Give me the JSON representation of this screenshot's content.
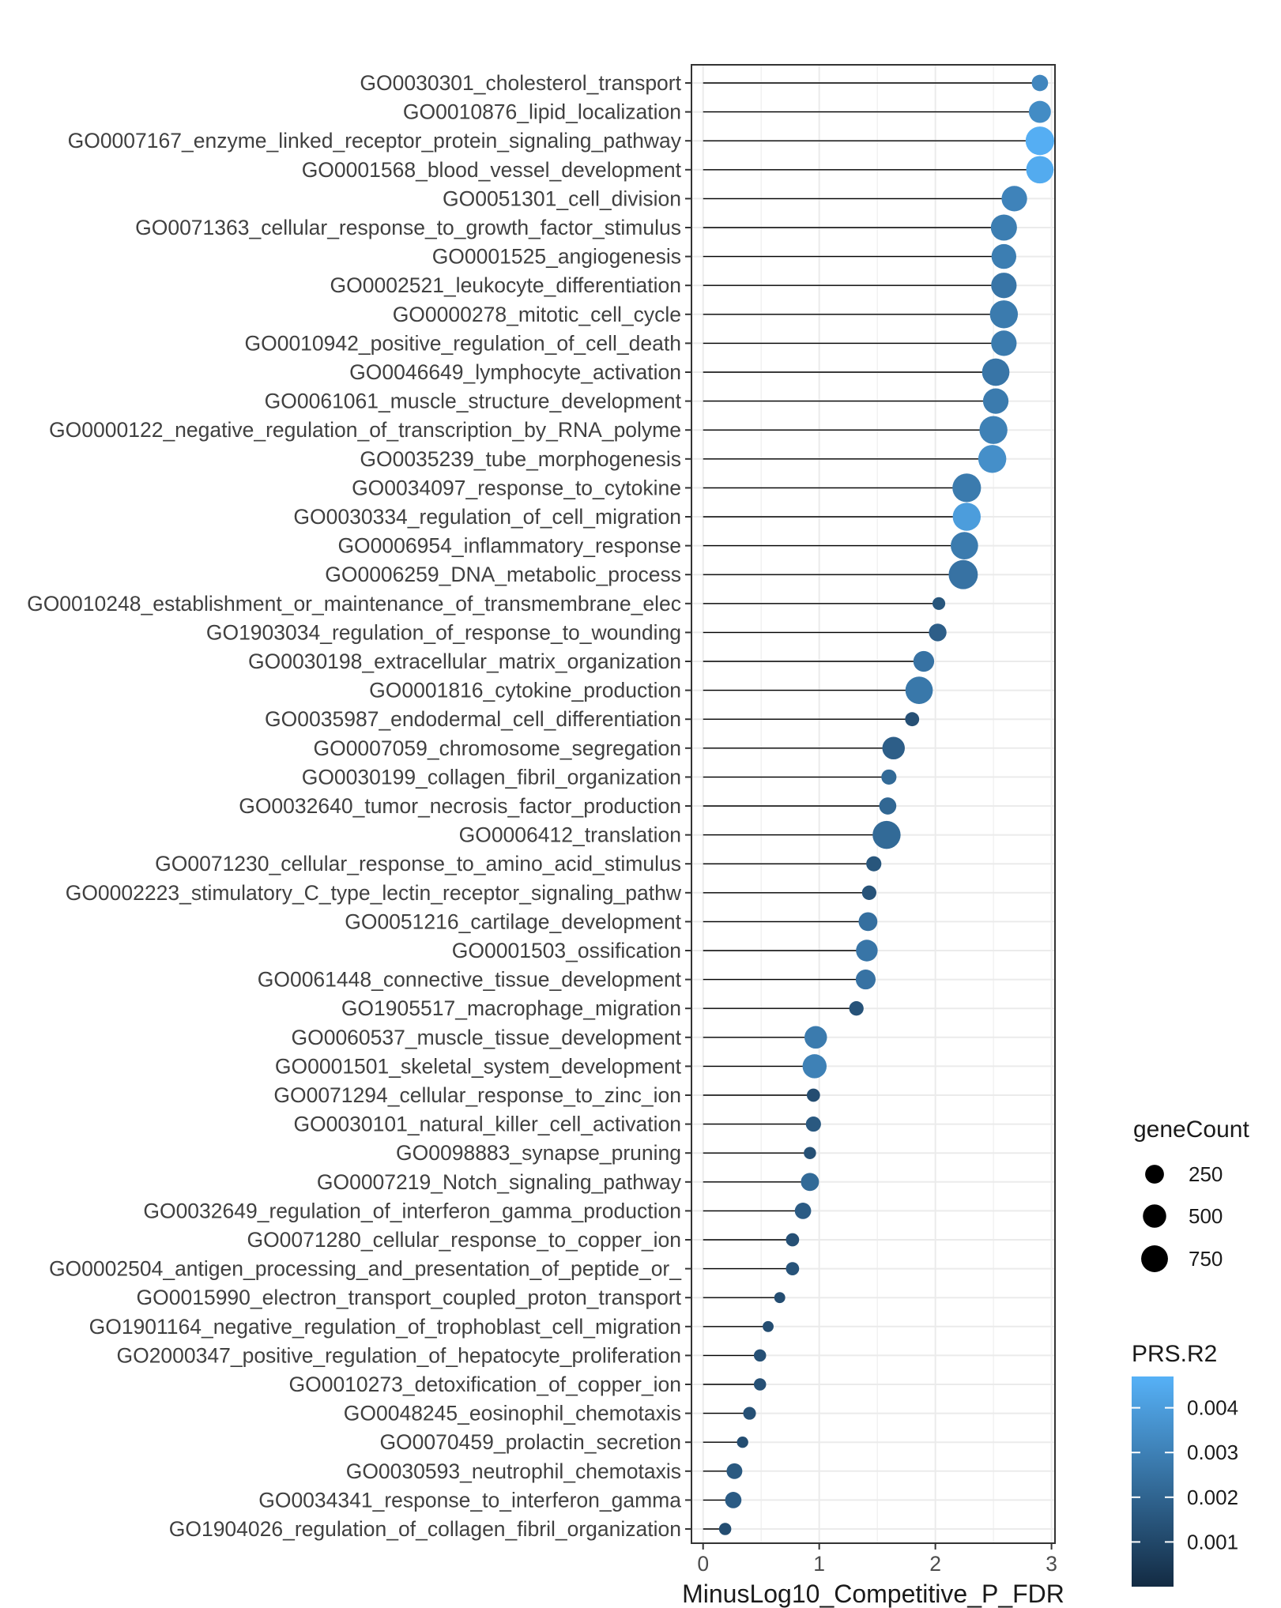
{
  "chart_data": {
    "type": "lollipop",
    "xlabel": "MinusLog10_Competitive_P_FDR",
    "xlim": [
      -0.1,
      3.03
    ],
    "x_ticks": [
      0,
      1,
      2,
      3
    ],
    "grid": true,
    "legend_placement": "right",
    "size_legend": {
      "title": "geneCount",
      "values": [
        250,
        500,
        750
      ]
    },
    "color_legend": {
      "title": "PRS.R2",
      "ticks": [
        0.001,
        0.002,
        0.003,
        0.004
      ],
      "tick_labels": [
        "0.001",
        "0.002",
        "0.003",
        "0.004"
      ],
      "range": [
        0.0,
        0.0047
      ],
      "colors": {
        "low": "#132B43",
        "high": "#56B1F7"
      }
    },
    "points": [
      {
        "label": "GO0030301_cholesterol_transport",
        "x": 2.9,
        "geneCount": 150,
        "prs_r2": 0.0032
      },
      {
        "label": "GO0010876_lipid_localization",
        "x": 2.9,
        "geneCount": 420,
        "prs_r2": 0.0034
      },
      {
        "label": "GO0007167_enzyme_linked_receptor_protein_signaling_pathway",
        "x": 2.9,
        "geneCount": 900,
        "prs_r2": 0.0046
      },
      {
        "label": "GO0001568_blood_vessel_development",
        "x": 2.9,
        "geneCount": 800,
        "prs_r2": 0.0045
      },
      {
        "label": "GO0051301_cell_division",
        "x": 2.68,
        "geneCount": 650,
        "prs_r2": 0.0031
      },
      {
        "label": "GO0071363_cellular_response_to_growth_factor_stimulus",
        "x": 2.59,
        "geneCount": 700,
        "prs_r2": 0.0029
      },
      {
        "label": "GO0001525_angiogenesis",
        "x": 2.59,
        "geneCount": 600,
        "prs_r2": 0.0029
      },
      {
        "label": "GO0002521_leukocyte_differentiation",
        "x": 2.59,
        "geneCount": 650,
        "prs_r2": 0.0026
      },
      {
        "label": "GO0000278_mitotic_cell_cycle",
        "x": 2.59,
        "geneCount": 850,
        "prs_r2": 0.0028
      },
      {
        "label": "GO0010942_positive_regulation_of_cell_death",
        "x": 2.59,
        "geneCount": 650,
        "prs_r2": 0.0028
      },
      {
        "label": "GO0046649_lymphocyte_activation",
        "x": 2.52,
        "geneCount": 800,
        "prs_r2": 0.0026
      },
      {
        "label": "GO0061061_muscle_structure_development",
        "x": 2.52,
        "geneCount": 650,
        "prs_r2": 0.0028
      },
      {
        "label": "GO0000122_negative_regulation_of_transcription_by_RNA_polyme",
        "x": 2.5,
        "geneCount": 850,
        "prs_r2": 0.003
      },
      {
        "label": "GO0035239_tube_morphogenesis",
        "x": 2.49,
        "geneCount": 850,
        "prs_r2": 0.0035
      },
      {
        "label": "GO0034097_response_to_cytokine",
        "x": 2.27,
        "geneCount": 900,
        "prs_r2": 0.0028
      },
      {
        "label": "GO0030334_regulation_of_cell_migration",
        "x": 2.27,
        "geneCount": 850,
        "prs_r2": 0.004
      },
      {
        "label": "GO0006954_inflammatory_response",
        "x": 2.25,
        "geneCount": 800,
        "prs_r2": 0.0028
      },
      {
        "label": "GO0006259_DNA_metabolic_process",
        "x": 2.24,
        "geneCount": 950,
        "prs_r2": 0.0025
      },
      {
        "label": "GO0010248_establishment_or_maintenance_of_transmembrane_elec",
        "x": 2.03,
        "geneCount": 50,
        "prs_r2": 0.0015
      },
      {
        "label": "GO1903034_regulation_of_response_to_wounding",
        "x": 2.02,
        "geneCount": 200,
        "prs_r2": 0.0018
      },
      {
        "label": "GO0030198_extracellular_matrix_organization",
        "x": 1.9,
        "geneCount": 350,
        "prs_r2": 0.0025
      },
      {
        "label": "GO0001816_cytokine_production",
        "x": 1.86,
        "geneCount": 800,
        "prs_r2": 0.0027
      },
      {
        "label": "GO0035987_endodermal_cell_differentiation",
        "x": 1.8,
        "geneCount": 80,
        "prs_r2": 0.0013
      },
      {
        "label": "GO0007059_chromosome_segregation",
        "x": 1.64,
        "geneCount": 450,
        "prs_r2": 0.0018
      },
      {
        "label": "GO0030199_collagen_fibril_organization",
        "x": 1.6,
        "geneCount": 110,
        "prs_r2": 0.0022
      },
      {
        "label": "GO0032640_tumor_necrosis_factor_production",
        "x": 1.59,
        "geneCount": 180,
        "prs_r2": 0.0021
      },
      {
        "label": "GO0006412_translation",
        "x": 1.58,
        "geneCount": 850,
        "prs_r2": 0.0022
      },
      {
        "label": "GO0071230_cellular_response_to_amino_acid_stimulus",
        "x": 1.47,
        "geneCount": 110,
        "prs_r2": 0.0015
      },
      {
        "label": "GO0002223_stimulatory_C_type_lectin_receptor_signaling_pathw",
        "x": 1.43,
        "geneCount": 90,
        "prs_r2": 0.0014
      },
      {
        "label": "GO0051216_cartilage_development",
        "x": 1.42,
        "geneCount": 250,
        "prs_r2": 0.0024
      },
      {
        "label": "GO0001503_ossification",
        "x": 1.41,
        "geneCount": 400,
        "prs_r2": 0.0026
      },
      {
        "label": "GO0061448_connective_tissue_development",
        "x": 1.4,
        "geneCount": 300,
        "prs_r2": 0.0025
      },
      {
        "label": "GO1905517_macrophage_migration",
        "x": 1.32,
        "geneCount": 90,
        "prs_r2": 0.0014
      },
      {
        "label": "GO0060537_muscle_tissue_development",
        "x": 0.97,
        "geneCount": 450,
        "prs_r2": 0.0028
      },
      {
        "label": "GO0001501_skeletal_system_development",
        "x": 0.96,
        "geneCount": 550,
        "prs_r2": 0.003
      },
      {
        "label": "GO0071294_cellular_response_to_zinc_ion",
        "x": 0.95,
        "geneCount": 60,
        "prs_r2": 0.0012
      },
      {
        "label": "GO0030101_natural_killer_cell_activation",
        "x": 0.95,
        "geneCount": 110,
        "prs_r2": 0.0016
      },
      {
        "label": "GO0098883_synapse_pruning",
        "x": 0.92,
        "geneCount": 40,
        "prs_r2": 0.0013
      },
      {
        "label": "GO0007219_Notch_signaling_pathway",
        "x": 0.92,
        "geneCount": 220,
        "prs_r2": 0.0022
      },
      {
        "label": "GO0032649_regulation_of_interferon_gamma_production",
        "x": 0.86,
        "geneCount": 150,
        "prs_r2": 0.0017
      },
      {
        "label": "GO0071280_cellular_response_to_copper_ion",
        "x": 0.77,
        "geneCount": 60,
        "prs_r2": 0.0013
      },
      {
        "label": "GO0002504_antigen_processing_and_presentation_of_peptide_or_",
        "x": 0.77,
        "geneCount": 60,
        "prs_r2": 0.0014
      },
      {
        "label": "GO0015990_electron_transport_coupled_proton_transport",
        "x": 0.66,
        "geneCount": 20,
        "prs_r2": 0.0012
      },
      {
        "label": "GO1901164_negative_regulation_of_trophoblast_cell_migration",
        "x": 0.56,
        "geneCount": 20,
        "prs_r2": 0.0012
      },
      {
        "label": "GO2000347_positive_regulation_of_hepatocyte_proliferation",
        "x": 0.49,
        "geneCount": 40,
        "prs_r2": 0.0013
      },
      {
        "label": "GO0010273_detoxification_of_copper_ion",
        "x": 0.49,
        "geneCount": 40,
        "prs_r2": 0.0013
      },
      {
        "label": "GO0048245_eosinophil_chemotaxis",
        "x": 0.4,
        "geneCount": 50,
        "prs_r2": 0.0013
      },
      {
        "label": "GO0070459_prolactin_secretion",
        "x": 0.34,
        "geneCount": 25,
        "prs_r2": 0.0012
      },
      {
        "label": "GO0030593_neutrophil_chemotaxis",
        "x": 0.27,
        "geneCount": 130,
        "prs_r2": 0.0016
      },
      {
        "label": "GO0034341_response_to_interferon_gamma",
        "x": 0.26,
        "geneCount": 150,
        "prs_r2": 0.0017
      },
      {
        "label": "GO1904026_regulation_of_collagen_fibril_organization",
        "x": 0.19,
        "geneCount": 40,
        "prs_r2": 0.0012
      }
    ]
  }
}
